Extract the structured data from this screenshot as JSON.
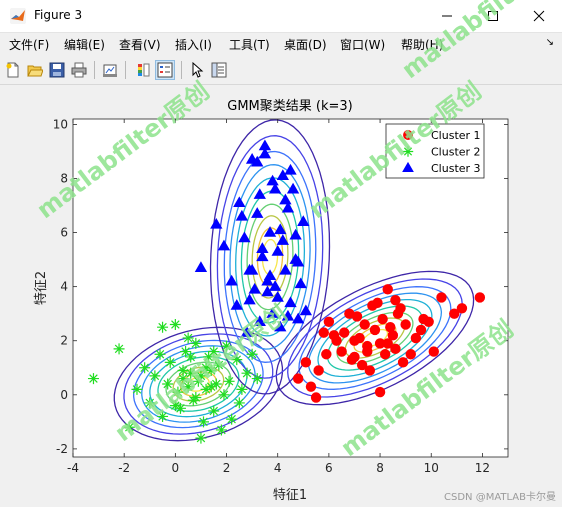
{
  "window": {
    "title": "Figure 3"
  },
  "menu": [
    "文件(F)",
    "编辑(E)",
    "查看(V)",
    "插入(I)",
    "工具(T)",
    "桌面(D)",
    "窗口(W)",
    "帮助(H)"
  ],
  "menu_overflow": "↘",
  "toolbar_icons": [
    "new-figure-icon",
    "open-icon",
    "save-icon",
    "print-icon",
    "link-plot-icon",
    "colorbar-icon",
    "legend-icon",
    "pointer-icon",
    "property-editor-icon"
  ],
  "watermark": "matlabfilter原创",
  "credit": "CSDN @MATLAB卡尔曼",
  "chart_data": {
    "type": "scatter",
    "title": "GMM聚类结果 (k=3)",
    "xlabel": "特征1",
    "ylabel": "特征2",
    "xlim": [
      -4,
      13
    ],
    "ylim": [
      -2.3,
      10.2
    ],
    "xticks": [
      -4,
      -2,
      0,
      2,
      4,
      6,
      8,
      10,
      12
    ],
    "yticks": [
      -2,
      0,
      2,
      4,
      6,
      8,
      10
    ],
    "grid": false,
    "legend_placement": "top-right",
    "series": [
      {
        "name": "Cluster 1",
        "marker": "circle",
        "color": "#ff0000",
        "x": [
          4.8,
          5.1,
          5.6,
          5.8,
          6.0,
          6.3,
          6.5,
          6.8,
          7.0,
          7.2,
          7.4,
          7.5,
          7.6,
          7.8,
          7.9,
          8.0,
          8.1,
          8.2,
          8.3,
          8.5,
          8.6,
          8.8,
          9.0,
          9.2,
          9.4,
          9.7,
          10.1,
          10.4,
          10.9,
          11.2,
          11.9,
          5.3,
          5.9,
          6.6,
          7.1,
          7.7,
          8.4,
          8.9,
          9.6,
          8.0,
          6.2,
          7.3,
          8.7,
          9.9,
          5.5,
          7.0,
          8.3,
          6.9,
          7.5,
          8.6
        ],
        "y": [
          0.6,
          1.2,
          0.9,
          2.3,
          2.7,
          2.0,
          1.6,
          3.0,
          1.4,
          2.1,
          2.6,
          1.8,
          0.9,
          2.4,
          3.4,
          1.9,
          2.8,
          1.5,
          3.9,
          2.2,
          1.7,
          3.2,
          2.6,
          1.5,
          2.1,
          2.8,
          1.6,
          3.6,
          3.0,
          3.2,
          3.6,
          0.3,
          1.5,
          2.3,
          2.9,
          3.3,
          2.5,
          1.2,
          2.4,
          0.1,
          2.2,
          1.1,
          3.0,
          2.7,
          -0.1,
          2.0,
          1.9,
          1.3,
          1.6,
          3.5
        ]
      },
      {
        "name": "Cluster 2",
        "marker": "star",
        "color": "#22dd22",
        "x": [
          -3.2,
          -2.2,
          -1.8,
          -1.5,
          -1.2,
          -1.0,
          -0.8,
          -0.6,
          -0.5,
          -0.3,
          -0.2,
          0.0,
          0.1,
          0.2,
          0.3,
          0.4,
          0.5,
          0.6,
          0.7,
          0.8,
          0.9,
          1.0,
          1.1,
          1.2,
          1.3,
          1.4,
          1.5,
          1.6,
          1.7,
          1.8,
          1.9,
          2.0,
          2.1,
          2.2,
          2.4,
          2.6,
          2.8,
          3.0,
          3.2,
          0.0,
          0.5,
          1.0,
          1.5,
          -0.5,
          0.8,
          1.2,
          0.3,
          2.5,
          0.6,
          1.4
        ],
        "y": [
          0.6,
          1.7,
          -1.2,
          0.2,
          1.0,
          -0.3,
          0.7,
          1.5,
          -0.8,
          0.4,
          1.2,
          2.6,
          0.1,
          -0.5,
          0.9,
          1.6,
          0.3,
          0.8,
          -0.2,
          1.9,
          0.5,
          0.7,
          -1.0,
          0.2,
          1.4,
          0.9,
          -0.6,
          0.4,
          1.1,
          -1.3,
          0.0,
          1.8,
          0.5,
          -0.9,
          1.3,
          0.2,
          0.8,
          1.5,
          0.6,
          -0.4,
          2.1,
          -1.6,
          1.6,
          2.5,
          -0.1,
          1.0,
          0.6,
          -0.3,
          1.4,
          0.3
        ]
      },
      {
        "name": "Cluster 3",
        "marker": "triangle",
        "color": "#0000ff",
        "x": [
          1.0,
          1.6,
          1.9,
          2.2,
          2.4,
          2.5,
          2.7,
          2.8,
          2.9,
          3.0,
          3.1,
          3.2,
          3.3,
          3.4,
          3.5,
          3.6,
          3.7,
          3.8,
          3.9,
          4.0,
          4.1,
          4.2,
          4.3,
          4.4,
          4.5,
          4.6,
          4.7,
          4.8,
          4.9,
          5.0,
          5.1,
          3.0,
          3.5,
          4.0,
          4.5,
          3.2,
          3.8,
          4.2,
          2.6,
          3.6,
          4.3,
          4.8,
          3.4,
          3.9,
          4.4,
          2.9,
          4.1,
          3.3,
          4.7,
          3.7
        ],
        "y": [
          4.7,
          6.3,
          5.5,
          4.2,
          3.3,
          7.1,
          5.8,
          2.3,
          4.6,
          8.7,
          3.9,
          6.7,
          2.7,
          5.1,
          8.9,
          4.2,
          6.0,
          3.0,
          7.6,
          5.3,
          2.5,
          8.1,
          4.6,
          6.9,
          3.4,
          7.6,
          5.0,
          2.8,
          4.1,
          6.4,
          3.1,
          4.6,
          9.2,
          3.6,
          8.3,
          8.6,
          7.9,
          5.7,
          6.6,
          3.8,
          7.2,
          4.9,
          5.4,
          4.0,
          2.9,
          3.5,
          6.1,
          7.4,
          5.9,
          4.4
        ]
      }
    ],
    "gaussians": [
      {
        "mean": [
          7.8,
          2.1
        ],
        "cov": [
          [
            2.2,
            0.8
          ],
          [
            0.8,
            0.9
          ]
        ]
      },
      {
        "mean": [
          0.9,
          0.4
        ],
        "cov": [
          [
            1.6,
            0.25
          ],
          [
            0.25,
            0.65
          ]
        ]
      },
      {
        "mean": [
          3.7,
          5.1
        ],
        "cov": [
          [
            0.8,
            0.15
          ],
          [
            0.15,
            3.8
          ]
        ]
      }
    ]
  }
}
